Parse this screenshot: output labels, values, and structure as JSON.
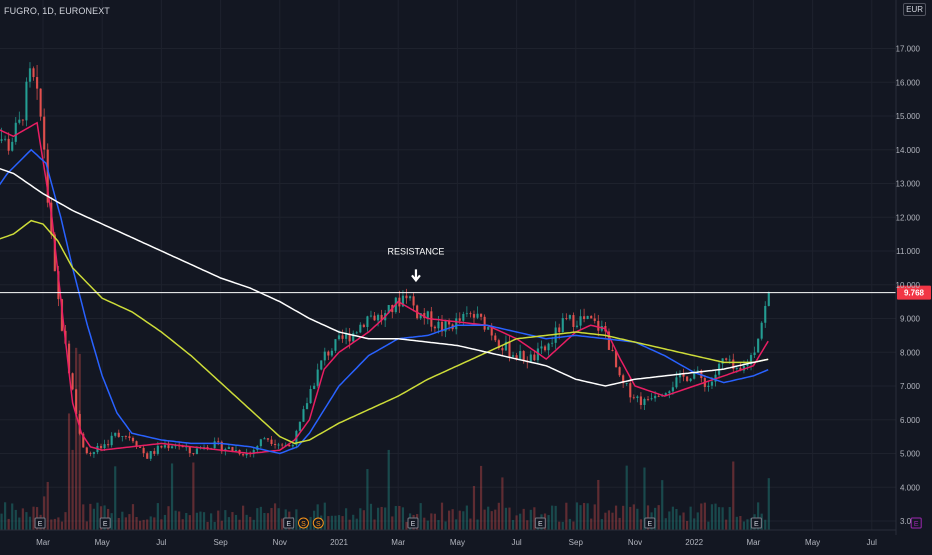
{
  "symbol_title": "FUGRO, 1D, EURONEXT",
  "currency": "EUR",
  "annotation": "RESISTANCE",
  "last_price_label": "9.768",
  "colors": {
    "background": "#131722",
    "grid": "#1e222d",
    "text": "#b2b5be",
    "candle_up": "#26a69a",
    "candle_down": "#ef5350",
    "ma_fast": "#e91e63",
    "ma_mid": "#2962ff",
    "ma_slow": "#cddc39",
    "ma_long": "#ffffff",
    "resistance_line": "#ffffff",
    "price_tag": "#f23645",
    "event_badge": "#9c27b0",
    "split_badge": "#f7931a"
  },
  "chart_data": {
    "type": "line",
    "title": "FUGRO, 1D, EURONEXT",
    "instrument": "FUGRO",
    "timeframe": "1D",
    "exchange": "EURONEXT",
    "ylabel": "EUR",
    "ylim": [
      2.7,
      18.0
    ],
    "grid": true,
    "x_ticks": [
      "Mar",
      "May",
      "Jul",
      "Sep",
      "Nov",
      "2021",
      "Mar",
      "May",
      "Jul",
      "Sep",
      "Nov",
      "2022",
      "Mar",
      "May",
      "Jul"
    ],
    "x_tick_months": [
      2,
      4,
      6,
      8,
      10,
      12,
      14,
      16,
      18,
      20,
      22,
      24,
      26,
      28,
      30
    ],
    "y_ticks": [
      3,
      4,
      5,
      6,
      7,
      8,
      9,
      10,
      11,
      12,
      13,
      14,
      15,
      16,
      17
    ],
    "y_tick_labels": [
      "3.000",
      "4.000",
      "5.000",
      "6.000",
      "7.000",
      "8.000",
      "9.000",
      "10.000",
      "11.000",
      "12.000",
      "13.000",
      "14.000",
      "15.000",
      "16.000",
      "17.000"
    ],
    "x_unit": "months since Jan 2020",
    "close_path": {
      "x": [
        0,
        0.4,
        0.8,
        1.2,
        1.6,
        2.0,
        2.2,
        2.4,
        2.6,
        3.0,
        3.3,
        3.6,
        4.0,
        4.5,
        5.0,
        5.5,
        6.0,
        6.5,
        7.0,
        7.5,
        8.0,
        8.5,
        9.0,
        9.5,
        10.0,
        10.3,
        10.6,
        11.0,
        11.5,
        12.0,
        12.5,
        13.0,
        13.5,
        14.0,
        14.3,
        14.6,
        15.0,
        15.5,
        16.0,
        16.5,
        17.0,
        17.5,
        18.0,
        18.5,
        19.0,
        19.5,
        20.0,
        20.5,
        21.0,
        21.5,
        22.0,
        22.3,
        22.6,
        23.0,
        23.5,
        24.0,
        24.5,
        25.0,
        25.5,
        26.0,
        26.3,
        26.55
      ],
      "y": [
        15.2,
        14.6,
        14.1,
        14.7,
        16.3,
        14.6,
        12.0,
        10.2,
        9.0,
        6.8,
        5.3,
        5.0,
        5.2,
        5.6,
        5.5,
        4.9,
        5.2,
        5.3,
        5.0,
        5.3,
        5.2,
        5.1,
        5.0,
        5.5,
        5.3,
        5.2,
        5.6,
        6.8,
        7.9,
        8.3,
        8.6,
        9.1,
        9.0,
        9.5,
        9.8,
        9.2,
        9.0,
        8.7,
        8.9,
        9.1,
        8.8,
        8.2,
        7.9,
        7.8,
        8.1,
        8.8,
        9.0,
        8.9,
        8.6,
        7.1,
        6.7,
        6.5,
        6.8,
        6.9,
        7.2,
        7.4,
        7.0,
        7.8,
        7.3,
        8.0,
        9.0,
        9.768
      ]
    },
    "series": [
      {
        "type": "line",
        "color": "#e91e63",
        "x": [
          0,
          1.0,
          1.8,
          2.3,
          2.7,
          3.0,
          3.3,
          3.6,
          4.0,
          5.0,
          6.0,
          7.0,
          8.0,
          9.0,
          10.0,
          10.5,
          11.0,
          11.5,
          12.0,
          13.0,
          13.5,
          14.0,
          15.0,
          16.0,
          17.0,
          18.0,
          19.0,
          20.0,
          20.5,
          21.0,
          21.5,
          22.0,
          23.0,
          24.0,
          25.0,
          26.0,
          26.55
        ],
        "y": [
          14.8,
          14.4,
          14.8,
          12.0,
          8.8,
          6.5,
          5.6,
          5.2,
          5.1,
          5.2,
          5.3,
          5.2,
          5.1,
          5.0,
          5.1,
          5.4,
          6.0,
          7.5,
          8.0,
          8.6,
          9.0,
          9.5,
          9.0,
          8.9,
          8.8,
          8.4,
          7.8,
          8.6,
          8.8,
          8.7,
          7.8,
          7.0,
          6.7,
          7.0,
          7.3,
          7.6,
          8.4
        ]
      },
      {
        "type": "line",
        "color": "#2962ff",
        "x": [
          0,
          0.8,
          1.6,
          2.1,
          2.6,
          3.0,
          3.5,
          4.0,
          4.5,
          5.0,
          6.0,
          7.0,
          8.0,
          9.0,
          10.0,
          10.6,
          11.0,
          11.5,
          12.0,
          13.0,
          14.0,
          15.0,
          16.0,
          17.0,
          18.0,
          19.0,
          20.0,
          21.0,
          22.0,
          23.0,
          24.0,
          25.0,
          26.0,
          26.55
        ],
        "y": [
          12.3,
          13.3,
          14.0,
          13.6,
          12.0,
          10.5,
          8.8,
          7.3,
          6.2,
          5.6,
          5.4,
          5.3,
          5.3,
          5.2,
          5.0,
          5.2,
          5.6,
          6.3,
          7.0,
          7.9,
          8.4,
          8.5,
          8.8,
          8.8,
          8.6,
          8.4,
          8.5,
          8.4,
          8.3,
          7.9,
          7.4,
          7.1,
          7.3,
          7.5
        ]
      },
      {
        "type": "line",
        "color": "#cddc39",
        "x": [
          0,
          1.0,
          1.6,
          2.0,
          2.5,
          3.0,
          4.0,
          5.0,
          6.0,
          7.0,
          8.0,
          9.0,
          10.0,
          10.5,
          11.0,
          12.0,
          13.0,
          14.0,
          15.0,
          16.0,
          17.0,
          18.0,
          19.0,
          20.0,
          21.0,
          22.0,
          23.0,
          24.0,
          25.0,
          26.0,
          26.55
        ],
        "y": [
          11.2,
          11.5,
          11.9,
          11.8,
          11.3,
          10.5,
          9.6,
          9.2,
          8.6,
          7.9,
          7.1,
          6.3,
          5.5,
          5.3,
          5.4,
          5.9,
          6.3,
          6.7,
          7.2,
          7.6,
          8.0,
          8.4,
          8.5,
          8.6,
          8.5,
          8.3,
          8.1,
          7.9,
          7.7,
          7.7,
          7.8
        ]
      },
      {
        "type": "line",
        "color": "#ffffff",
        "x": [
          0,
          1.0,
          2.0,
          3.0,
          4.0,
          5.0,
          6.0,
          7.0,
          8.0,
          9.0,
          10.0,
          11.0,
          12.0,
          13.0,
          14.0,
          15.0,
          16.0,
          17.0,
          18.0,
          19.0,
          20.0,
          21.0,
          22.0,
          23.0,
          24.0,
          25.0,
          26.0,
          26.55
        ],
        "y": [
          13.6,
          13.3,
          12.7,
          12.2,
          11.8,
          11.4,
          11.0,
          10.6,
          10.2,
          9.9,
          9.5,
          9.0,
          8.6,
          8.4,
          8.4,
          8.3,
          8.2,
          8.0,
          7.8,
          7.6,
          7.2,
          7.0,
          7.2,
          7.3,
          7.4,
          7.5,
          7.7,
          7.8
        ]
      }
    ],
    "annotations": [
      {
        "text": "RESISTANCE",
        "x": 14.6,
        "y": 10.9
      },
      {
        "type": "hline",
        "y": 9.768,
        "label": "9.768"
      }
    ],
    "event_markers": [
      {
        "text": "E",
        "x": 1.9,
        "kind": "earnings"
      },
      {
        "text": "E",
        "x": 4.1,
        "kind": "earnings"
      },
      {
        "text": "E",
        "x": 10.3,
        "kind": "earnings"
      },
      {
        "text": "S",
        "x": 10.8,
        "kind": "split"
      },
      {
        "text": "S",
        "x": 11.3,
        "kind": "split"
      },
      {
        "text": "E",
        "x": 14.5,
        "kind": "earnings"
      },
      {
        "text": "E",
        "x": 18.8,
        "kind": "earnings"
      },
      {
        "text": "E",
        "x": 22.5,
        "kind": "earnings"
      },
      {
        "text": "E",
        "x": 26.1,
        "kind": "earnings"
      },
      {
        "text": "E",
        "x": 31.5,
        "kind": "future-earnings"
      }
    ]
  }
}
